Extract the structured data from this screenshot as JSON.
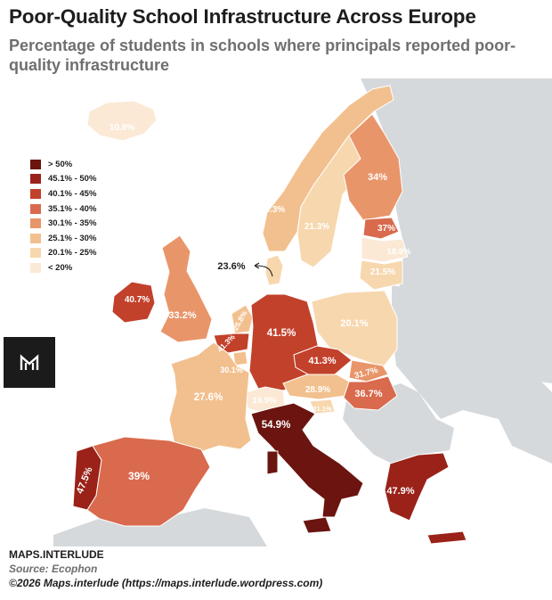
{
  "title": "Poor-Quality School Infrastructure Across Europe",
  "subtitle": "Percentage of students in schools where principals reported poor-quality infrastructure",
  "legend": [
    {
      "label": "> 50%",
      "color": "#6b1410"
    },
    {
      "label": "45.1% - 50%",
      "color": "#9a2218"
    },
    {
      "label": "40.1% - 45%",
      "color": "#c2412b"
    },
    {
      "label": "35.1% - 40%",
      "color": "#d96a4d"
    },
    {
      "label": "30.1% - 35%",
      "color": "#e9956a"
    },
    {
      "label": "25.1% - 30%",
      "color": "#f2c08e"
    },
    {
      "label": "20.1% - 25%",
      "color": "#f7d7ae"
    },
    {
      "label": "< 20%",
      "color": "#fbe9d6"
    }
  ],
  "countries": [
    {
      "id": "iceland",
      "value": "10.8%"
    },
    {
      "id": "norway",
      "value": "26.3%"
    },
    {
      "id": "sweden",
      "value": "21.3%"
    },
    {
      "id": "finland",
      "value": "34%"
    },
    {
      "id": "estonia",
      "value": "37%"
    },
    {
      "id": "latvia",
      "value": "18.6%"
    },
    {
      "id": "lithuania",
      "value": "21.5%"
    },
    {
      "id": "denmark",
      "value": "23.6%"
    },
    {
      "id": "ireland",
      "value": "40.7%"
    },
    {
      "id": "united-kingdom",
      "value": "33.2%"
    },
    {
      "id": "netherlands",
      "value": "25.8%"
    },
    {
      "id": "belgium",
      "value": "41.3%"
    },
    {
      "id": "luxembourg",
      "value": "30.1%"
    },
    {
      "id": "germany",
      "value": "41.5%"
    },
    {
      "id": "poland",
      "value": "20.1%"
    },
    {
      "id": "czechia",
      "value": "41.3%"
    },
    {
      "id": "slovakia",
      "value": "31.7%"
    },
    {
      "id": "austria",
      "value": "28.9%"
    },
    {
      "id": "hungary",
      "value": "36.7%"
    },
    {
      "id": "slovenia",
      "value": "21.1%"
    },
    {
      "id": "switzerland",
      "value": "19.9%"
    },
    {
      "id": "france",
      "value": "27.6%"
    },
    {
      "id": "italy",
      "value": "54.9%"
    },
    {
      "id": "portugal",
      "value": "47.5%"
    },
    {
      "id": "spain",
      "value": "39%"
    },
    {
      "id": "greece",
      "value": "47.9%"
    }
  ],
  "footer": {
    "brand": "MAPS.INTERLUDE",
    "source": "Source: Ecophon",
    "copyright": "©2026 Maps.interlude (https://maps.interlude.wordpress.com)"
  }
}
